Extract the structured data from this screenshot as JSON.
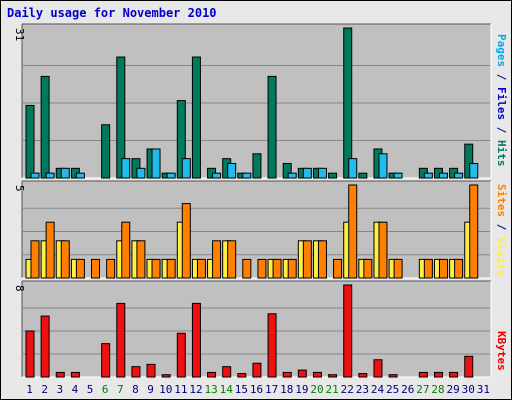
{
  "chart_data": {
    "type": "bar",
    "title": "Daily usage for November 2010",
    "categories": [
      "1",
      "2",
      "3",
      "4",
      "5",
      "6",
      "7",
      "8",
      "9",
      "10",
      "11",
      "12",
      "13",
      "14",
      "15",
      "16",
      "17",
      "18",
      "19",
      "20",
      "21",
      "22",
      "23",
      "24",
      "25",
      "26",
      "27",
      "28",
      "29",
      "30",
      "31"
    ],
    "weekend_days": [
      "6",
      "7",
      "13",
      "14",
      "20",
      "21",
      "27",
      "28"
    ],
    "panels": [
      {
        "name": "pages-files-hits",
        "ymax": 31,
        "ymax_label": "31",
        "side_label": [
          {
            "text": "Pages",
            "color": "#00aaee"
          },
          {
            "text": " / ",
            "color": "#000080"
          },
          {
            "text": "Files",
            "color": "#0000cc"
          },
          {
            "text": " / ",
            "color": "#000080"
          },
          {
            "text": "Hits",
            "color": "#007a5e"
          }
        ],
        "series": [
          {
            "name": "Hits",
            "color": "#007a5e",
            "values": [
              15,
              21,
              2,
              2,
              0,
              11,
              25,
              4,
              6,
              1,
              16,
              25,
              2,
              4,
              1,
              5,
              21,
              3,
              2,
              2,
              1,
              31,
              1,
              6,
              1,
              0,
              2,
              2,
              2,
              7,
              0
            ]
          },
          {
            "name": "Files",
            "color": "#22bbee",
            "values": [
              1,
              1,
              2,
              1,
              0,
              0,
              4,
              2,
              6,
              1,
              4,
              0,
              1,
              3,
              1,
              0,
              0,
              1,
              2,
              2,
              0,
              4,
              0,
              5,
              1,
              0,
              1,
              1,
              1,
              3,
              0
            ]
          }
        ]
      },
      {
        "name": "sites-visits",
        "ymax": 5,
        "ymax_label": "5",
        "side_label": [
          {
            "text": "Sites",
            "color": "#ff8000"
          },
          {
            "text": " / ",
            "color": "#000080"
          },
          {
            "text": "Visits",
            "color": "#ffee44"
          }
        ],
        "series": [
          {
            "name": "Visits",
            "color": "#ffee44",
            "values": [
              1,
              2,
              2,
              1,
              0,
              0,
              2,
              2,
              1,
              1,
              3,
              1,
              1,
              2,
              0,
              0,
              1,
              1,
              2,
              2,
              0,
              3,
              1,
              3,
              1,
              0,
              1,
              1,
              1,
              3,
              0
            ]
          },
          {
            "name": "Sites",
            "color": "#ff8000",
            "values": [
              2,
              3,
              2,
              1,
              1,
              1,
              3,
              2,
              1,
              1,
              4,
              1,
              2,
              2,
              1,
              1,
              1,
              1,
              2,
              2,
              1,
              5,
              1,
              3,
              1,
              0,
              1,
              1,
              1,
              5,
              0
            ]
          }
        ]
      },
      {
        "name": "kbytes",
        "ymax": 8,
        "ymax_label": "8",
        "side_label": [
          {
            "text": "KBytes",
            "color": "#ee0000"
          }
        ],
        "series": [
          {
            "name": "KBytes",
            "color": "#ee1111",
            "values": [
              4.0,
              5.3,
              0.4,
              0.4,
              0,
              2.9,
              6.4,
              0.9,
              1.1,
              0.2,
              3.8,
              6.4,
              0.4,
              0.9,
              0.3,
              1.2,
              5.5,
              0.4,
              0.6,
              0.4,
              0.2,
              8.0,
              0.3,
              1.5,
              0.2,
              0,
              0.4,
              0.4,
              0.4,
              1.8,
              0
            ]
          }
        ]
      }
    ],
    "grid": true,
    "colors": {
      "plot_background": "#c0c0c0",
      "frame_background": "#e8e8e8",
      "gridline": "#888888",
      "weekday_label": "#000080",
      "weekend_label": "#008000"
    }
  }
}
